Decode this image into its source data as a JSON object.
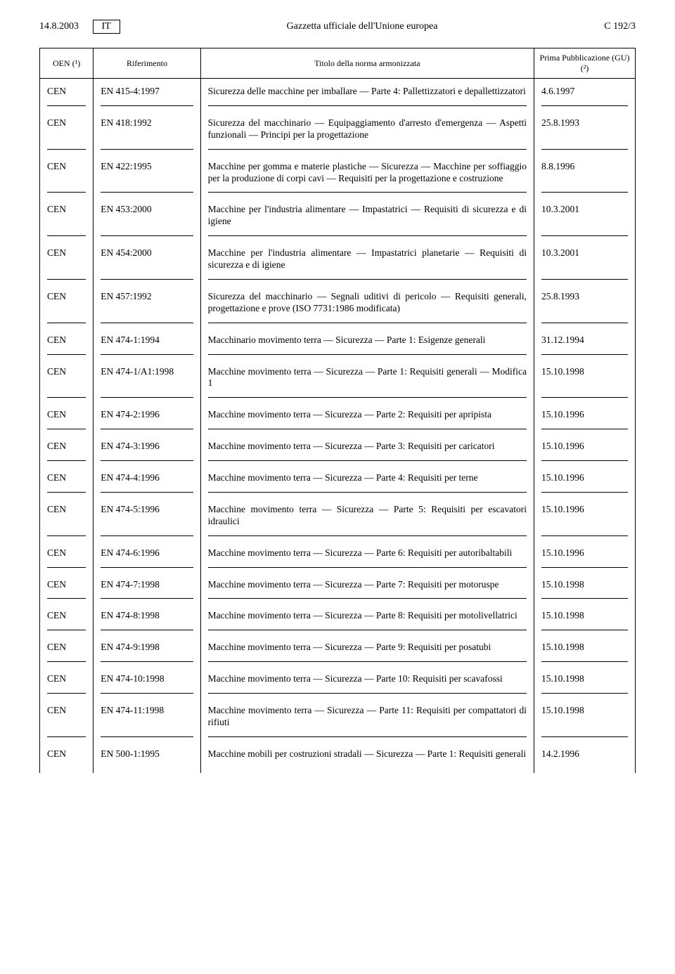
{
  "header": {
    "date": "14.8.2003",
    "lang": "IT",
    "publication": "Gazzetta ufficiale dell'Unione europea",
    "pageref": "C 192/3"
  },
  "table": {
    "columns": {
      "oen": "OEN (¹)",
      "ref": "Riferimento",
      "title": "Titolo della norma armonizzata",
      "date": "Prima Pubblicazione (GU) (²)"
    },
    "rows": [
      {
        "oen": "CEN",
        "ref": "EN 415-4:1997",
        "title": "Sicurezza delle macchine per imballare — Parte 4: Pallettizzatori e depallettizzatori",
        "date": "4.6.1997"
      },
      {
        "oen": "CEN",
        "ref": "EN 418:1992",
        "title": "Sicurezza del macchinario — Equipaggiamento d'arresto d'emergenza — Aspetti funzionali — Principi per la progettazione",
        "date": "25.8.1993"
      },
      {
        "oen": "CEN",
        "ref": "EN 422:1995",
        "title": "Macchine per gomma e materie plastiche — Sicurezza — Macchine per soffiaggio per la produzione di corpi cavi — Requisiti per la progettazione e costruzione",
        "date": "8.8.1996"
      },
      {
        "oen": "CEN",
        "ref": "EN 453:2000",
        "title": "Macchine per l'industria alimentare — Impastatrici — Requisiti di sicurezza e di igiene",
        "date": "10.3.2001"
      },
      {
        "oen": "CEN",
        "ref": "EN 454:2000",
        "title": "Macchine per l'industria alimentare — Impastatrici planetarie — Requisiti di sicurezza e di igiene",
        "date": "10.3.2001"
      },
      {
        "oen": "CEN",
        "ref": "EN 457:1992",
        "title": "Sicurezza del macchinario — Segnali uditivi di pericolo — Requisiti generali, progettazione e prove (ISO 7731:1986 modificata)",
        "date": "25.8.1993"
      },
      {
        "oen": "CEN",
        "ref": "EN 474-1:1994",
        "title": "Macchinario movimento terra — Sicurezza — Parte 1: Esigenze generali",
        "date": "31.12.1994"
      },
      {
        "oen": "CEN",
        "ref": "EN 474-1/A1:1998",
        "title": "Macchine movimento terra — Sicurezza — Parte 1: Requisiti generali — Modifica 1",
        "date": "15.10.1998"
      },
      {
        "oen": "CEN",
        "ref": "EN 474-2:1996",
        "title": "Macchine movimento terra — Sicurezza — Parte 2: Requisiti per apripista",
        "date": "15.10.1996"
      },
      {
        "oen": "CEN",
        "ref": "EN 474-3:1996",
        "title": "Macchine movimento terra — Sicurezza — Parte 3: Requisiti per caricatori",
        "date": "15.10.1996"
      },
      {
        "oen": "CEN",
        "ref": "EN 474-4:1996",
        "title": "Macchine movimento terra — Sicurezza — Parte 4: Requisiti per terne",
        "date": "15.10.1996"
      },
      {
        "oen": "CEN",
        "ref": "EN 474-5:1996",
        "title": "Macchine movimento terra — Sicurezza — Parte 5: Requisiti per escavatori idraulici",
        "date": "15.10.1996"
      },
      {
        "oen": "CEN",
        "ref": "EN 474-6:1996",
        "title": "Macchine movimento terra — Sicurezza — Parte 6: Requisiti per autoribaltabili",
        "date": "15.10.1996"
      },
      {
        "oen": "CEN",
        "ref": "EN 474-7:1998",
        "title": "Macchine movimento terra — Sicurezza — Parte 7: Requisiti per motoruspe",
        "date": "15.10.1998"
      },
      {
        "oen": "CEN",
        "ref": "EN 474-8:1998",
        "title": "Macchine movimento terra — Sicurezza — Parte 8: Requisiti per motolivellatrici",
        "date": "15.10.1998"
      },
      {
        "oen": "CEN",
        "ref": "EN 474-9:1998",
        "title": "Macchine movimento terra — Sicurezza — Parte 9: Requisiti per posatubi",
        "date": "15.10.1998"
      },
      {
        "oen": "CEN",
        "ref": "EN 474-10:1998",
        "title": "Macchine movimento terra — Sicurezza — Parte 10: Requisiti per scavafossi",
        "date": "15.10.1998"
      },
      {
        "oen": "CEN",
        "ref": "EN 474-11:1998",
        "title": "Macchine movimento terra — Sicurezza — Parte 11: Requisiti per compattatori di rifiuti",
        "date": "15.10.1998"
      },
      {
        "oen": "CEN",
        "ref": "EN 500-1:1995",
        "title": "Macchine mobili per costruzioni stradali — Sicurezza — Parte 1: Requisiti generali",
        "date": "14.2.1996"
      }
    ]
  }
}
